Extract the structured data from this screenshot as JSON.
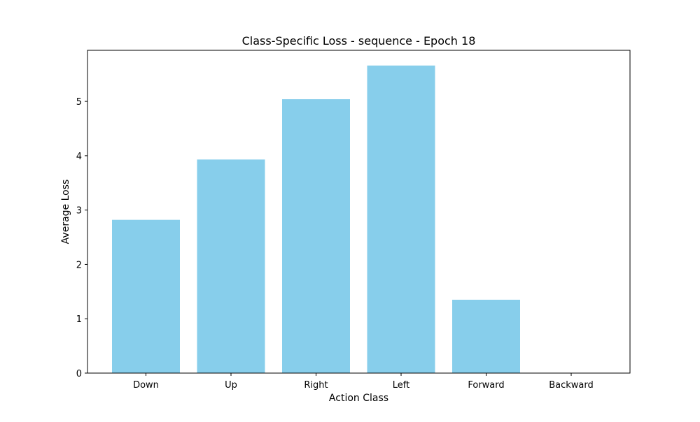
{
  "chart_data": {
    "type": "bar",
    "title": "Class-Specific Loss - sequence - Epoch 18",
    "xlabel": "Action Class",
    "ylabel": "Average Loss",
    "categories": [
      "Down",
      "Up",
      "Right",
      "Left",
      "Forward",
      "Backward"
    ],
    "values": [
      2.82,
      3.93,
      5.04,
      5.66,
      1.35,
      0
    ],
    "ylim": [
      0,
      5.94
    ],
    "yticks": [
      "0",
      "1",
      "2",
      "3",
      "4",
      "5"
    ],
    "grid": false,
    "bar_color": "#87ceeb"
  }
}
